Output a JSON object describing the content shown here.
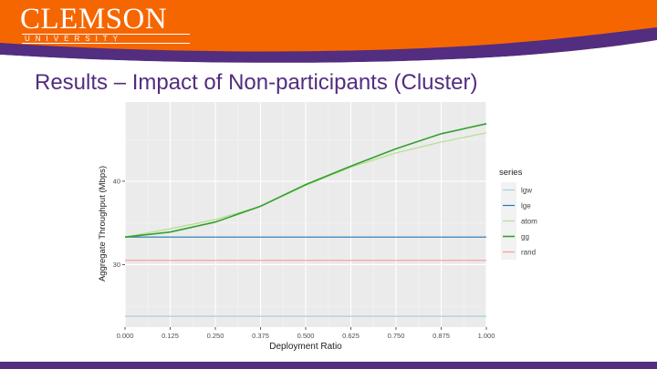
{
  "logo": {
    "wordmark": "CLEMSON",
    "subtitle": "UNIVERSITY"
  },
  "slide": {
    "title": "Results – Impact of Non-participants (Cluster)"
  },
  "colors": {
    "orange": "#f56600",
    "purple": "#522d80",
    "panel": "#ebebeb"
  },
  "chart_data": {
    "type": "line",
    "xlabel": "Deployment Ratio",
    "ylabel": "Aggregate Throughput (Mbps)",
    "xlim": [
      0,
      1
    ],
    "ylim": [
      22.5,
      49.5
    ],
    "x_ticks": [
      "0.000",
      "0.125",
      "0.250",
      "0.375",
      "0.500",
      "0.625",
      "0.750",
      "0.875",
      "1.000"
    ],
    "y_ticks": [
      "30",
      "40"
    ],
    "x": [
      0.0,
      0.125,
      0.25,
      0.375,
      0.5,
      0.625,
      0.75,
      0.875,
      1.0
    ],
    "legend_title": "series",
    "legend_position": "right",
    "grid": true,
    "series": [
      {
        "name": "lgw",
        "color": "#a6cee3",
        "values": [
          23.8,
          23.8,
          23.8,
          23.8,
          23.8,
          23.8,
          23.8,
          23.8,
          23.8
        ]
      },
      {
        "name": "lge",
        "color": "#1f78b4",
        "values": [
          33.3,
          33.3,
          33.3,
          33.3,
          33.3,
          33.3,
          33.3,
          33.3,
          33.3
        ]
      },
      {
        "name": "atom",
        "color": "#b2df8a",
        "values": [
          33.3,
          34.3,
          35.4,
          37.0,
          39.5,
          41.7,
          43.4,
          44.7,
          45.8
        ]
      },
      {
        "name": "gg",
        "color": "#33a02c",
        "values": [
          33.3,
          33.9,
          35.1,
          37.0,
          39.6,
          41.8,
          43.9,
          45.7,
          46.9
        ]
      },
      {
        "name": "rand",
        "color": "#fb9a99",
        "values": [
          30.5,
          30.5,
          30.5,
          30.5,
          30.5,
          30.5,
          30.5,
          30.5,
          30.5
        ]
      }
    ]
  }
}
